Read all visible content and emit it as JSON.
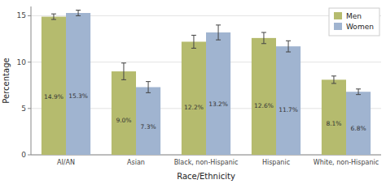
{
  "chart_data": {
    "type": "bar",
    "categories": [
      "AI/AN",
      "Asian",
      "Black, non-Hispanic",
      "Hispanic",
      "White, non-Hispanic"
    ],
    "series": [
      {
        "name": "Men",
        "color": "#b5bb6e",
        "values": [
          14.9,
          9.0,
          12.2,
          12.6,
          8.1
        ],
        "errors": [
          0.3,
          0.9,
          0.7,
          0.6,
          0.4
        ],
        "value_labels": [
          "14.9%",
          "9.0%",
          "12.2%",
          "12.6%",
          "8.1%"
        ]
      },
      {
        "name": "Women",
        "color": "#a0b4d0",
        "values": [
          15.3,
          7.3,
          13.2,
          11.7,
          6.8
        ],
        "errors": [
          0.3,
          0.6,
          0.8,
          0.6,
          0.3
        ],
        "value_labels": [
          "15.3%",
          "7.3%",
          "13.2%",
          "11.7%",
          "6.8%"
        ]
      }
    ],
    "xlabel": "Race/Ethnicity",
    "ylabel": "Percentage",
    "ylim": [
      0,
      16
    ],
    "yticks": [
      0,
      5,
      10,
      15
    ],
    "grid": true,
    "legend": "upper right",
    "data_labels": true
  }
}
